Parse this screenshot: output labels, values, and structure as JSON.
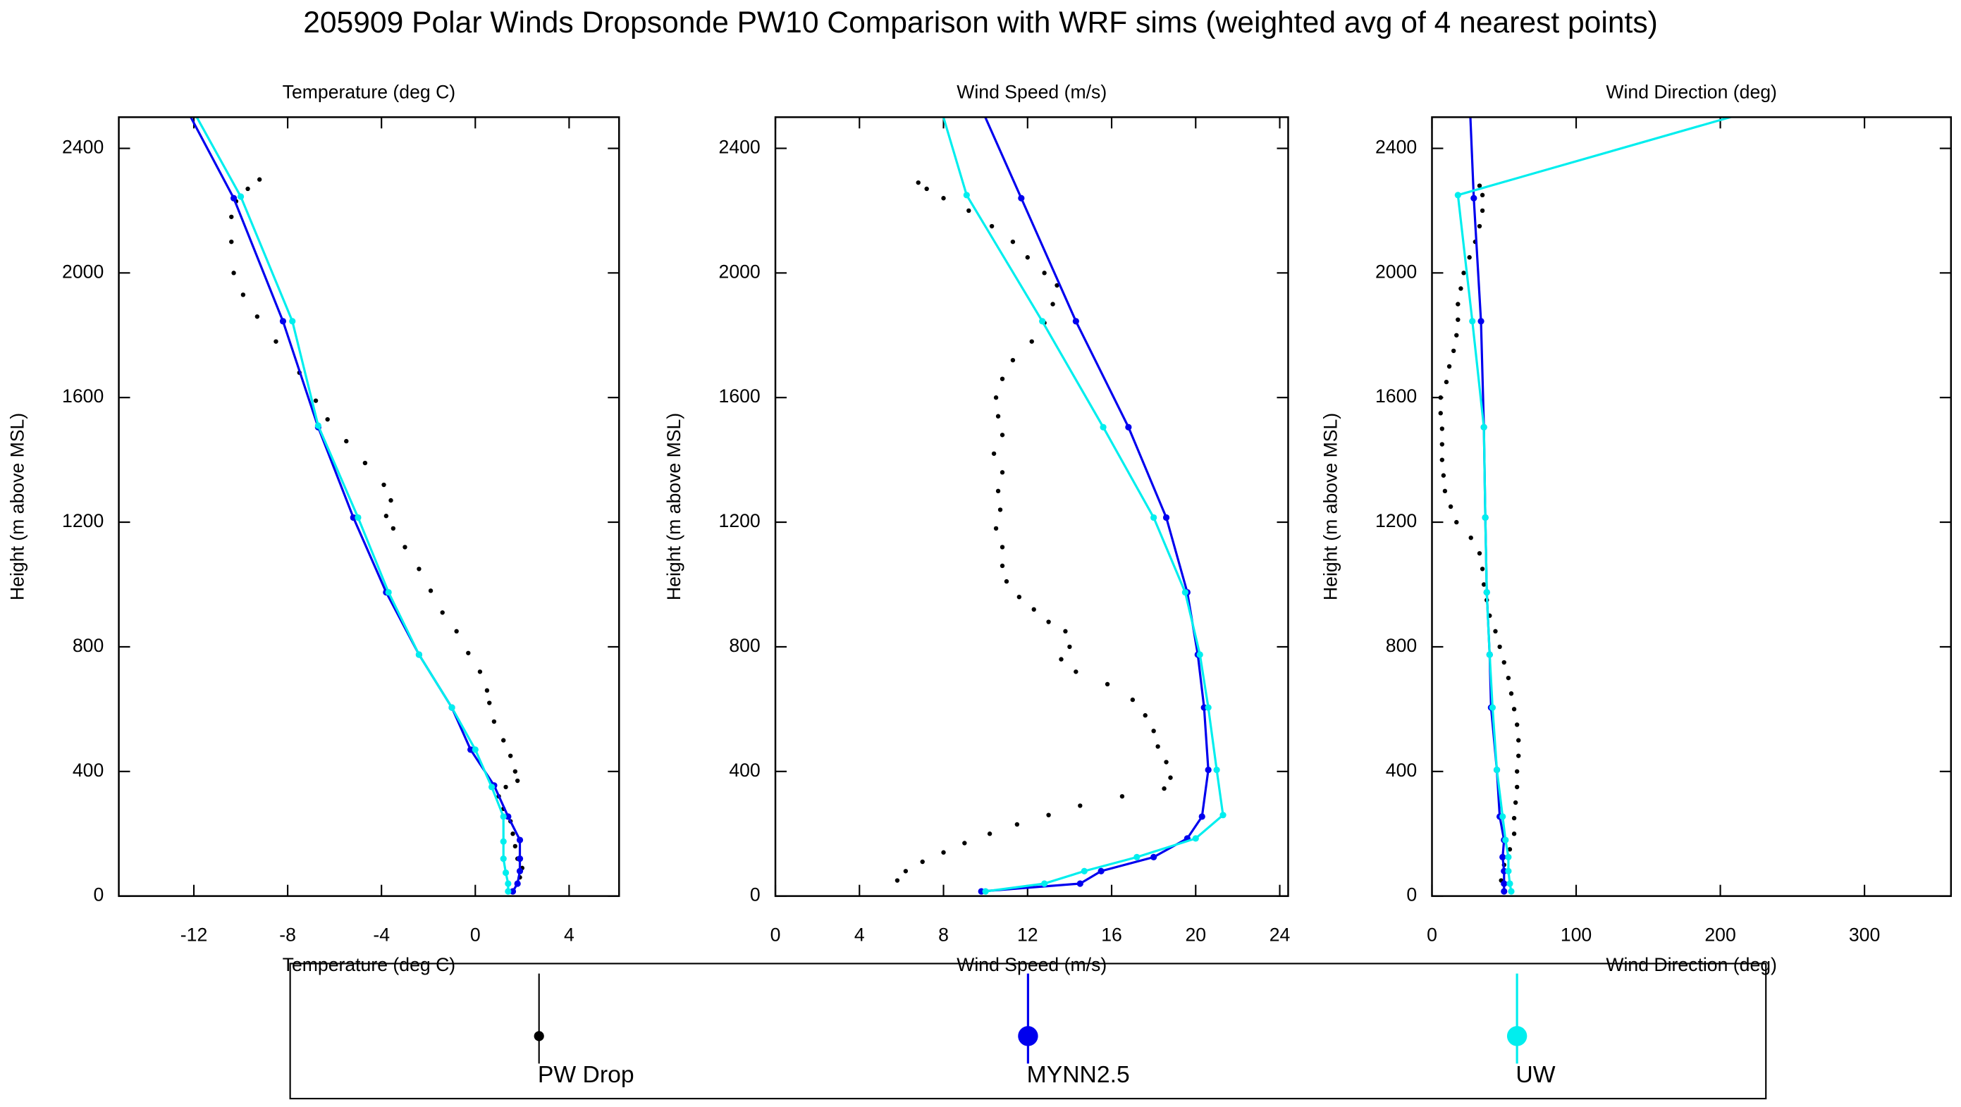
{
  "title": "205909 Polar Winds Dropsonde PW10 Comparison with WRF sims (weighted avg of 4 nearest points)",
  "chart_data": [
    {
      "type": "line",
      "title": "Temperature (deg C)",
      "xlabel": "Temperature (deg C)",
      "ylabel": "Height (m above MSL)",
      "xlim": [
        -15.2,
        6.13
      ],
      "ylim": [
        0,
        2500
      ],
      "xticks": [
        -12,
        -8,
        -4,
        0,
        4
      ],
      "yticks": [
        0,
        400,
        800,
        1200,
        1600,
        2000,
        2400
      ],
      "series": [
        {
          "name": "PW Drop",
          "color": "#000000",
          "style": "dots",
          "x": [
            -9.2,
            -9.7,
            -10.2,
            -10.4,
            -10.4,
            -10.3,
            -9.9,
            -9.3,
            -8.5,
            -7.5,
            -6.8,
            -6.3,
            -5.5,
            -4.7,
            -3.9,
            -3.6,
            -3.8,
            -3.5,
            -3.0,
            -2.4,
            -1.9,
            -1.4,
            -0.8,
            -0.3,
            0.2,
            0.5,
            0.6,
            0.8,
            1.2,
            1.5,
            1.7,
            1.8,
            1.3,
            1.0,
            1.2,
            1.5,
            1.6,
            1.7,
            1.8,
            2.0,
            1.9
          ],
          "y": [
            2300,
            2270,
            2230,
            2180,
            2100,
            2000,
            1930,
            1860,
            1780,
            1680,
            1590,
            1530,
            1460,
            1390,
            1320,
            1270,
            1220,
            1180,
            1120,
            1050,
            980,
            910,
            850,
            780,
            720,
            660,
            620,
            560,
            500,
            450,
            400,
            370,
            350,
            320,
            280,
            240,
            200,
            160,
            120,
            90,
            60
          ]
        },
        {
          "name": "MYNN2.5",
          "color": "#0000ee",
          "style": "line",
          "x": [
            1.6,
            1.8,
            1.9,
            1.9,
            1.9,
            1.4,
            0.8,
            -0.2,
            -1.0,
            -2.4,
            -3.8,
            -5.2,
            -6.7,
            -8.2,
            -10.3,
            -13.4
          ],
          "y": [
            15,
            40,
            80,
            120,
            180,
            255,
            355,
            470,
            605,
            775,
            975,
            1215,
            1505,
            1845,
            2240,
            2680
          ]
        },
        {
          "name": "UW",
          "color": "#00eeee",
          "style": "line",
          "x": [
            1.4,
            1.4,
            1.3,
            1.2,
            1.2,
            1.2,
            0.7,
            0.0,
            -1.0,
            -2.4,
            -3.7,
            -5.0,
            -6.7,
            -7.8,
            -10.0,
            -13.2
          ],
          "y": [
            15,
            40,
            75,
            120,
            175,
            255,
            350,
            470,
            605,
            775,
            975,
            1215,
            1510,
            1845,
            2245,
            2680
          ]
        }
      ]
    },
    {
      "type": "line",
      "title": "Wind Speed (m/s)",
      "xlabel": "Wind Speed (m/s)",
      "ylabel": "Height (m above MSL)",
      "xlim": [
        0,
        24.4
      ],
      "ylim": [
        0,
        2500
      ],
      "xticks": [
        0,
        4,
        8,
        12,
        16,
        20,
        24
      ],
      "yticks": [
        0,
        400,
        800,
        1200,
        1600,
        2000,
        2400
      ],
      "series": [
        {
          "name": "PW Drop",
          "color": "#000000",
          "style": "dots",
          "x": [
            5.8,
            6.2,
            7.0,
            8.0,
            9.0,
            10.2,
            11.5,
            13.0,
            14.5,
            16.5,
            18.5,
            18.8,
            18.6,
            18.2,
            18.0,
            17.6,
            17.0,
            15.8,
            14.3,
            13.6,
            14.0,
            13.8,
            13.0,
            12.3,
            11.6,
            11.0,
            10.8,
            10.8,
            10.5,
            10.7,
            10.6,
            10.8,
            10.4,
            10.8,
            10.6,
            10.5,
            10.8,
            11.3,
            12.2,
            12.8,
            13.2,
            13.4,
            12.8,
            12.0,
            11.3,
            10.3,
            9.2,
            8.0,
            7.2,
            6.8
          ],
          "y": [
            50,
            80,
            110,
            140,
            170,
            200,
            230,
            260,
            290,
            320,
            345,
            380,
            430,
            480,
            530,
            580,
            630,
            680,
            720,
            760,
            800,
            850,
            880,
            920,
            960,
            1010,
            1060,
            1120,
            1180,
            1240,
            1300,
            1360,
            1420,
            1480,
            1540,
            1600,
            1660,
            1720,
            1780,
            1840,
            1900,
            1960,
            2000,
            2050,
            2100,
            2150,
            2200,
            2240,
            2270,
            2290
          ]
        },
        {
          "name": "MYNN2.5",
          "color": "#0000ee",
          "style": "line",
          "x": [
            9.8,
            14.5,
            15.5,
            18.0,
            19.6,
            20.3,
            20.6,
            20.4,
            20.1,
            19.6,
            18.6,
            16.8,
            14.3,
            11.7,
            8.8
          ],
          "y": [
            15,
            40,
            80,
            125,
            185,
            255,
            405,
            605,
            775,
            975,
            1215,
            1505,
            1845,
            2240,
            2680
          ]
        },
        {
          "name": "UW",
          "color": "#00eeee",
          "style": "line",
          "x": [
            10.0,
            12.8,
            14.7,
            17.2,
            20.0,
            21.3,
            21.0,
            20.6,
            20.2,
            19.5,
            18.0,
            15.6,
            12.7,
            9.1,
            7.2
          ],
          "y": [
            15,
            40,
            80,
            125,
            185,
            260,
            405,
            605,
            775,
            975,
            1215,
            1505,
            1845,
            2250,
            2680
          ]
        }
      ]
    },
    {
      "type": "line",
      "title": "Wind Direction (deg)",
      "xlabel": "Wind Direction (deg)",
      "ylabel": "Height (m above MSL)",
      "xlim": [
        0,
        360
      ],
      "ylim": [
        0,
        2500
      ],
      "xticks": [
        0,
        100,
        200,
        300
      ],
      "yticks": [
        0,
        400,
        800,
        1200,
        1600,
        2000,
        2400
      ],
      "series": [
        {
          "name": "PW Drop",
          "color": "#000000",
          "style": "dots",
          "x": [
            48,
            50,
            54,
            57,
            57,
            58,
            59,
            59,
            60,
            60,
            59,
            57,
            55,
            53,
            50,
            47,
            44,
            40,
            38,
            36,
            35,
            33,
            27,
            17,
            13,
            9,
            8,
            7,
            7,
            7,
            6,
            6,
            10,
            12,
            15,
            17,
            18,
            18,
            20,
            22,
            26,
            30,
            33,
            35,
            35,
            33
          ],
          "y": [
            50,
            100,
            150,
            200,
            250,
            300,
            350,
            400,
            450,
            500,
            550,
            600,
            650,
            700,
            750,
            800,
            850,
            900,
            950,
            1000,
            1050,
            1100,
            1150,
            1200,
            1250,
            1300,
            1350,
            1400,
            1450,
            1500,
            1550,
            1600,
            1650,
            1700,
            1750,
            1800,
            1850,
            1900,
            1950,
            2000,
            2050,
            2100,
            2150,
            2200,
            2250,
            2280
          ]
        },
        {
          "name": "MYNN2.5",
          "color": "#0000ee",
          "style": "line",
          "x": [
            50,
            50,
            50,
            49,
            50,
            47,
            45,
            41,
            40,
            38,
            37,
            36,
            34,
            29,
            25
          ],
          "y": [
            15,
            40,
            80,
            125,
            180,
            255,
            405,
            605,
            775,
            975,
            1215,
            1505,
            1845,
            2240,
            2680
          ]
        },
        {
          "name": "UW",
          "color": "#00eeee",
          "style": "line",
          "x": [
            55,
            54,
            53,
            53,
            51,
            49,
            45,
            42,
            40,
            38,
            37,
            36,
            28,
            18,
            343
          ],
          "y": [
            15,
            40,
            80,
            125,
            180,
            255,
            405,
            605,
            775,
            975,
            1215,
            1505,
            1845,
            2250,
            2680
          ]
        }
      ]
    }
  ]
}
